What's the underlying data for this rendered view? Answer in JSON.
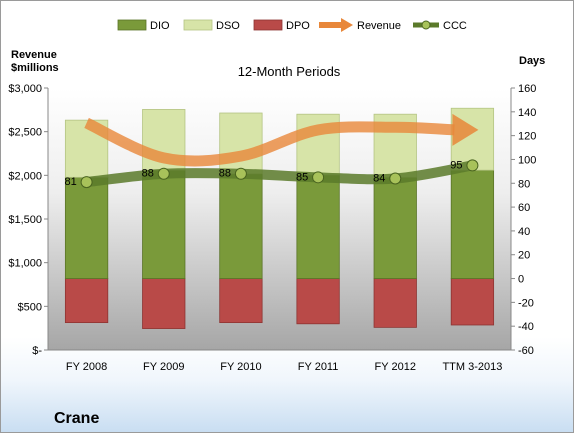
{
  "chart_data": {
    "type": "bar",
    "title": "12-Month Periods",
    "company": "Crane",
    "categories": [
      "FY 2008",
      "FY 2009",
      "FY 2010",
      "FY 2011",
      "FY 2012",
      "TTM 3-2013"
    ],
    "left_axis": {
      "title_line1": "Revenue",
      "title_line2": "$millions",
      "ylim": [
        0,
        3000
      ],
      "ticks": [
        0,
        500,
        1000,
        1500,
        2000,
        2500,
        3000
      ],
      "tick_labels": [
        "$-",
        "$500",
        "$1,000",
        "$1,500",
        "$2,000",
        "$2,500",
        "$3,000"
      ]
    },
    "right_axis": {
      "title": "Days",
      "ylim": [
        -60,
        160
      ],
      "ticks": [
        -60,
        -40,
        -20,
        0,
        20,
        40,
        60,
        80,
        100,
        120,
        140,
        160
      ],
      "tick_labels": [
        "-60",
        "-40",
        "-20",
        "0",
        "20",
        "40",
        "60",
        "80",
        "100",
        "120",
        "140",
        "160"
      ]
    },
    "series": [
      {
        "name": "DIO",
        "type": "bar",
        "axis": "right",
        "color": "#7a9a3a",
        "values": [
          85,
          91,
          88,
          87,
          85,
          91
        ]
      },
      {
        "name": "DSO",
        "type": "bar",
        "axis": "right",
        "color": "#d7e4a8",
        "values": [
          48,
          51,
          51,
          51,
          53,
          52
        ]
      },
      {
        "name": "DPO",
        "type": "bar",
        "axis": "right",
        "color": "#b94a48",
        "values": [
          -37,
          -42,
          -37,
          -38,
          -41,
          -39
        ]
      },
      {
        "name": "Revenue",
        "type": "line",
        "axis": "left",
        "color": "#e8873a",
        "values": [
          2600,
          2200,
          2220,
          2520,
          2550,
          2520
        ]
      },
      {
        "name": "CCC",
        "type": "line",
        "axis": "right",
        "color": "#5b7a2a",
        "values": [
          81,
          88,
          88,
          85,
          84,
          95
        ],
        "labels": [
          "81",
          "88",
          "88",
          "85",
          "84",
          "95"
        ]
      }
    ],
    "grid": false,
    "legend_position": "top"
  }
}
